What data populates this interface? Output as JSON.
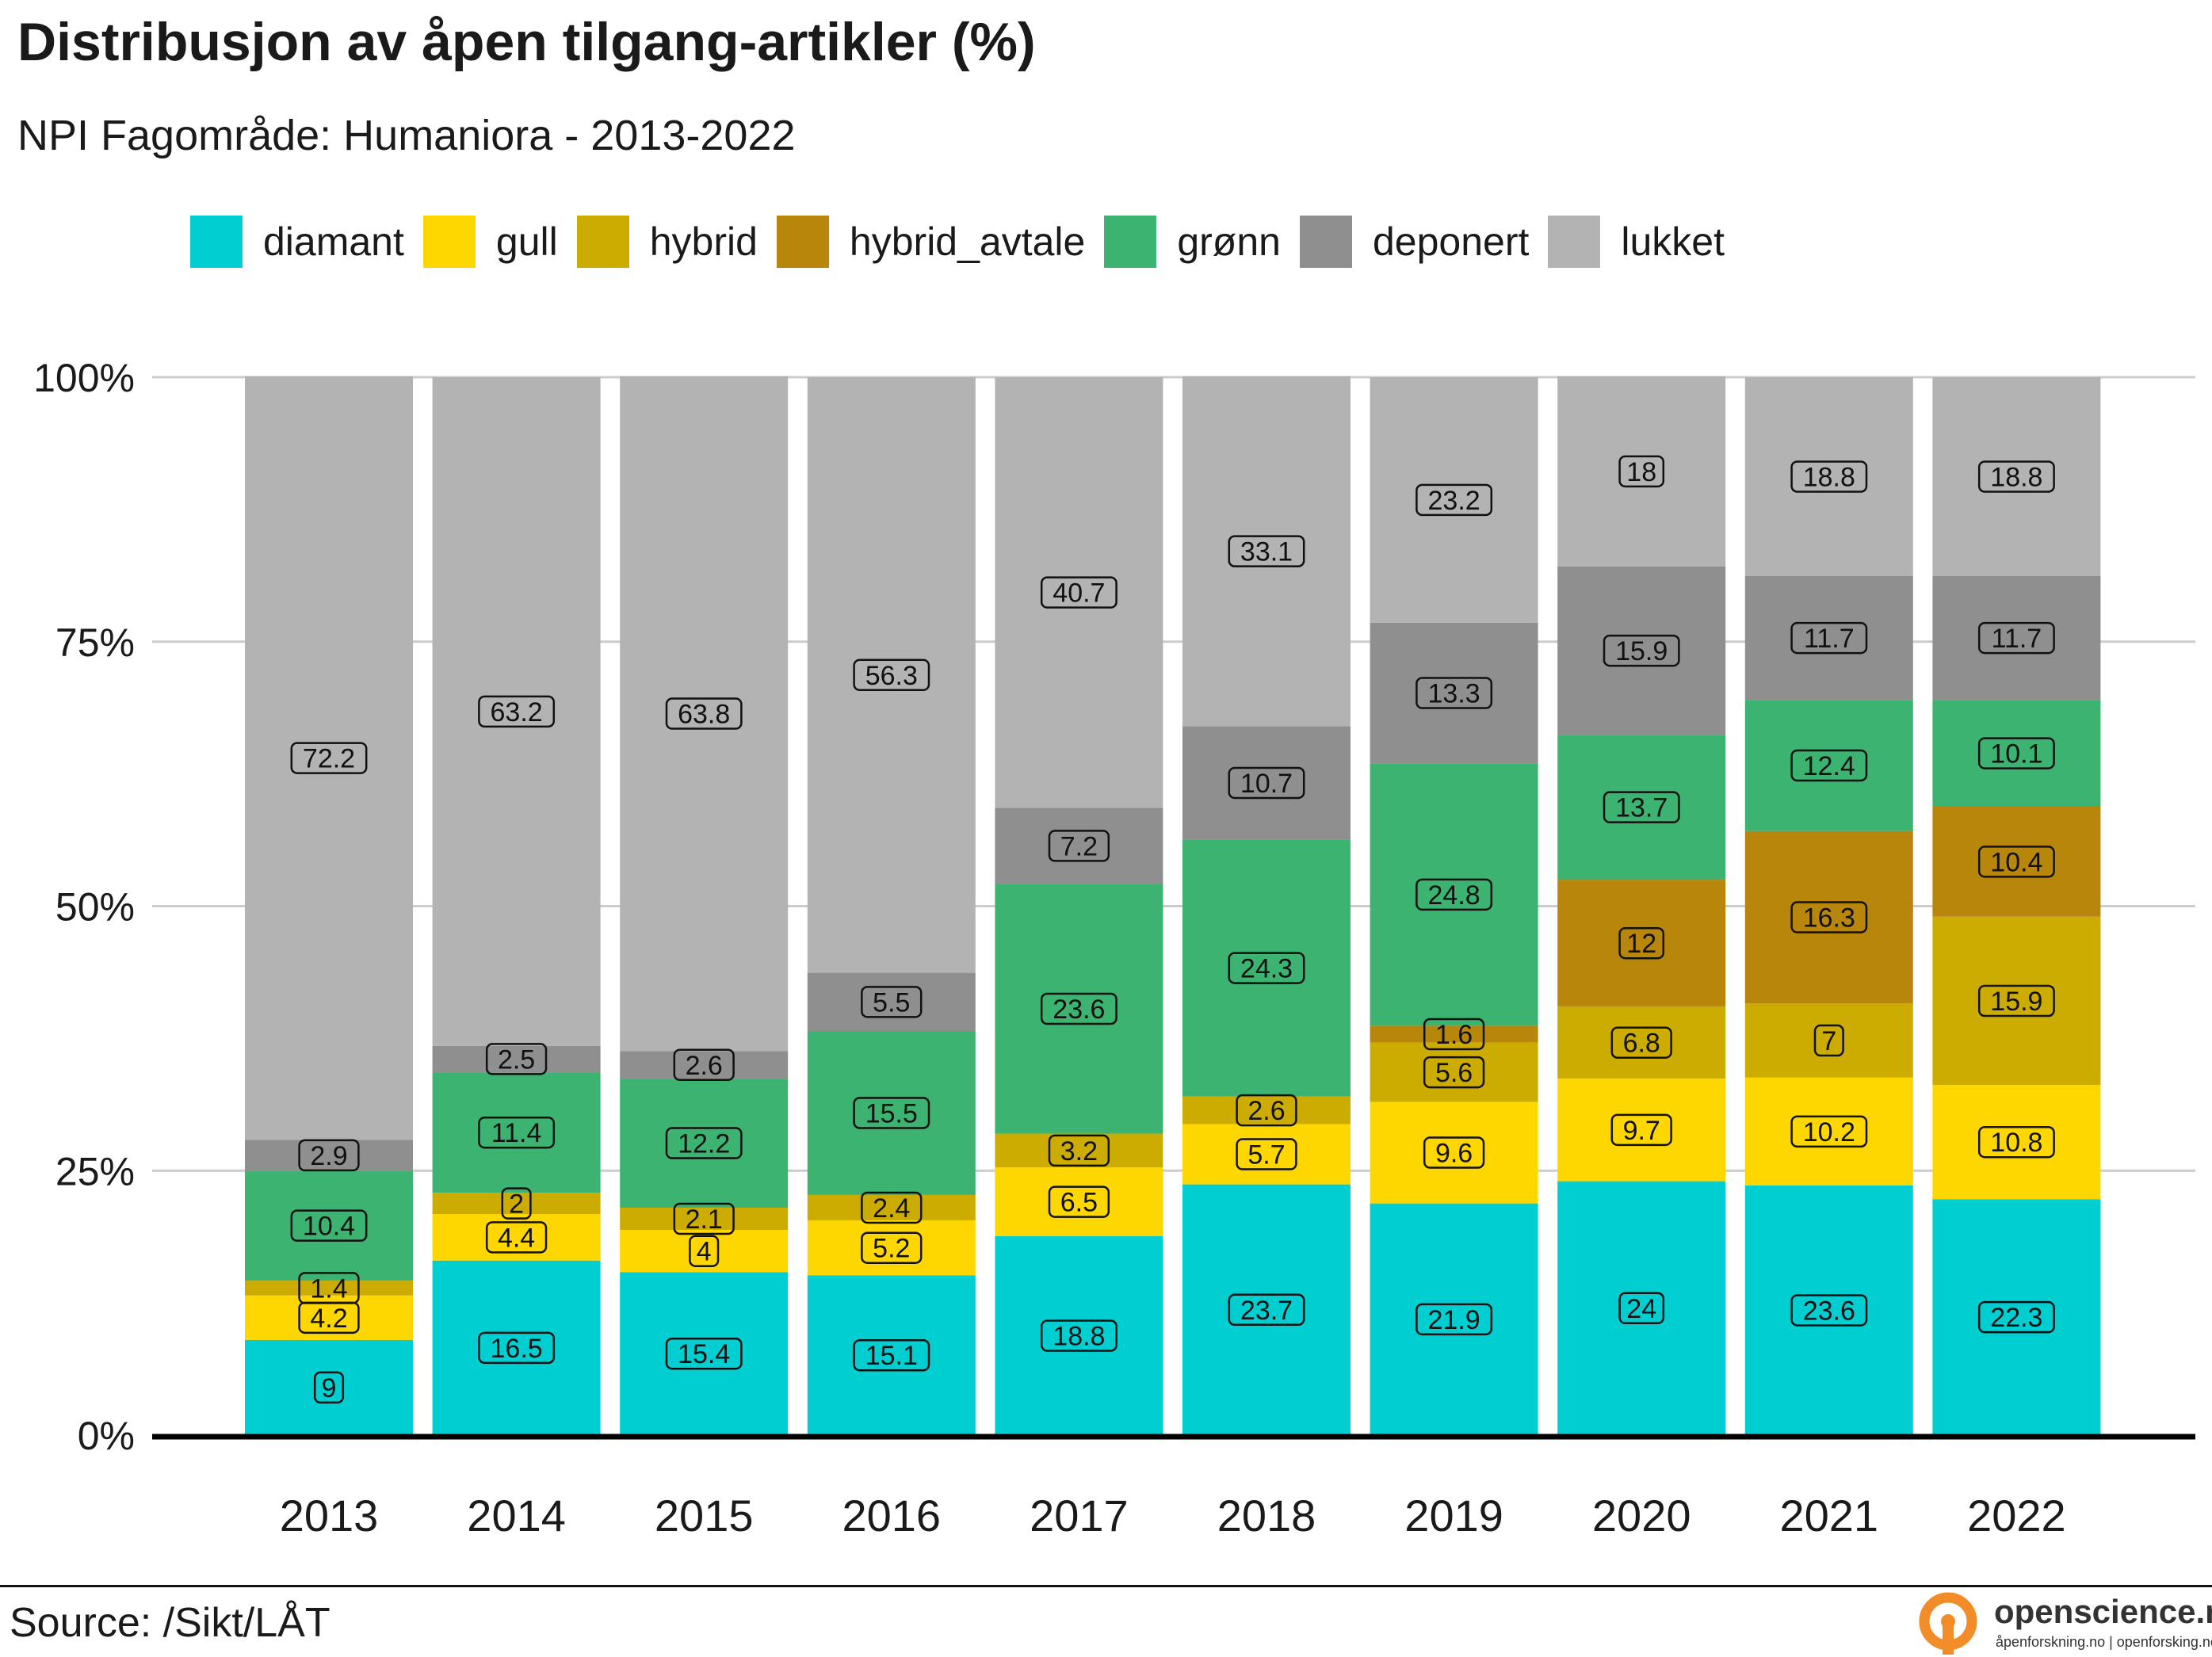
{
  "header": {
    "title": "Distribusjon av åpen tilgang-artikler (%)",
    "subtitle": "NPI Fagområde: Humaniora - 2013-2022"
  },
  "footer": {
    "source": "Source: /Sikt/LÅT",
    "logo_name": "openscience.no",
    "logo_tagline": "åpenforskning.no | openforsking.no"
  },
  "colors": {
    "diamant": "#00CED1",
    "gull": "#FFD700",
    "hybrid": "#CCAC00",
    "hybrid_avtale": "#B8860B",
    "grønn": "#3CB371",
    "deponert": "#8F8F8F",
    "lukket": "#B3B3B3",
    "logo": "#F28C28"
  },
  "chart_data": {
    "type": "bar",
    "stacked": true,
    "categories": [
      "2013",
      "2014",
      "2015",
      "2016",
      "2017",
      "2018",
      "2019",
      "2020",
      "2021",
      "2022"
    ],
    "series": [
      {
        "name": "diamant",
        "values": [
          9,
          16.5,
          15.4,
          15.1,
          18.8,
          23.7,
          21.9,
          24,
          23.6,
          22.3
        ]
      },
      {
        "name": "gull",
        "values": [
          4.2,
          4.4,
          4,
          5.2,
          6.5,
          5.7,
          9.6,
          9.7,
          10.2,
          10.8
        ]
      },
      {
        "name": "hybrid",
        "values": [
          1.4,
          2,
          2.1,
          2.4,
          3.2,
          2.6,
          5.6,
          6.8,
          7,
          15.9
        ]
      },
      {
        "name": "hybrid_avtale",
        "values": [
          null,
          null,
          null,
          null,
          null,
          null,
          1.6,
          12,
          16.3,
          10.4
        ]
      },
      {
        "name": "grønn",
        "values": [
          10.4,
          11.4,
          12.2,
          15.5,
          23.6,
          24.3,
          24.8,
          13.7,
          12.4,
          10.1
        ]
      },
      {
        "name": "deponert",
        "values": [
          2.9,
          2.5,
          2.6,
          5.5,
          7.2,
          10.7,
          13.3,
          15.9,
          11.7,
          11.7
        ]
      },
      {
        "name": "lukket",
        "values": [
          72.2,
          63.2,
          63.8,
          56.3,
          40.7,
          33.1,
          23.2,
          18,
          18.8,
          18.8
        ]
      }
    ],
    "y_ticks": [
      "0%",
      "25%",
      "50%",
      "75%",
      "100%"
    ],
    "y_tick_values": [
      0,
      25,
      50,
      75,
      100
    ],
    "ylim": [
      0,
      100
    ],
    "xlabel": "",
    "ylabel": "",
    "grid": "horizontal",
    "legend": "top",
    "data_labels": true
  }
}
